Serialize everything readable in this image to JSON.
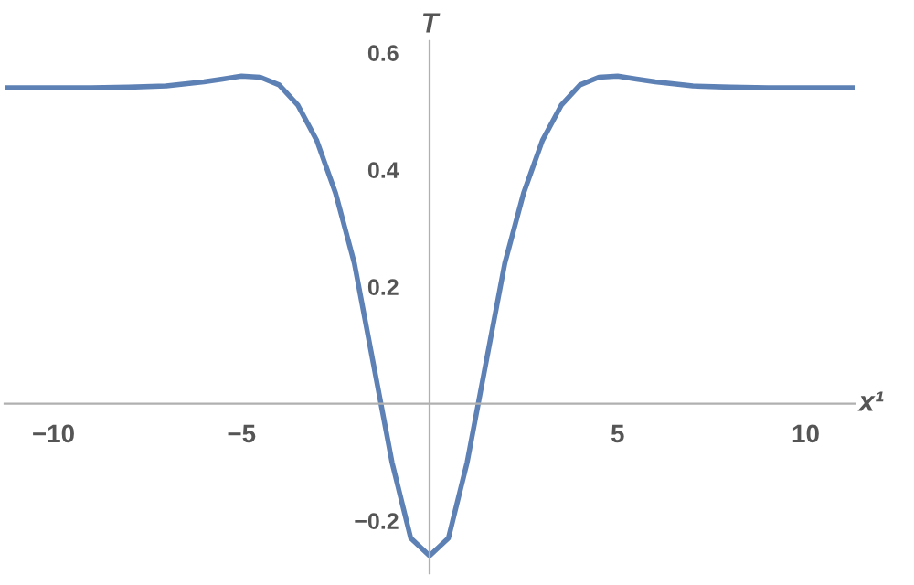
{
  "chart_data": {
    "type": "line",
    "xlabel": "x¹",
    "ylabel": "T",
    "x": [
      -11.3,
      -10,
      -9,
      -8,
      -7,
      -6,
      -5.5,
      -5,
      -4.5,
      -4,
      -3.5,
      -3,
      -2.5,
      -2,
      -1.5,
      -1,
      -0.5,
      0,
      0.5,
      1,
      1.5,
      2,
      2.5,
      3,
      3.5,
      4,
      4.5,
      5,
      5.5,
      6,
      7,
      8,
      9,
      10,
      11.3
    ],
    "series": [
      {
        "color": "#5e81b5",
        "values": [
          0.54,
          0.54,
          0.54,
          0.541,
          0.543,
          0.55,
          0.555,
          0.56,
          0.558,
          0.545,
          0.51,
          0.45,
          0.36,
          0.24,
          0.07,
          -0.1,
          -0.23,
          -0.26,
          -0.23,
          -0.1,
          0.07,
          0.24,
          0.36,
          0.45,
          0.51,
          0.545,
          0.558,
          0.56,
          0.555,
          0.55,
          0.543,
          0.541,
          0.54,
          0.54,
          0.54
        ]
      }
    ],
    "xlim": [
      -11.3,
      11.3
    ],
    "ylim": [
      -0.29,
      0.62
    ],
    "xticks": [
      -10,
      -5,
      5,
      10
    ],
    "yticks": [
      -0.2,
      0.2,
      0.4,
      0.6
    ],
    "grid": false,
    "legend": false,
    "marker": "none",
    "line_style": "solid"
  }
}
